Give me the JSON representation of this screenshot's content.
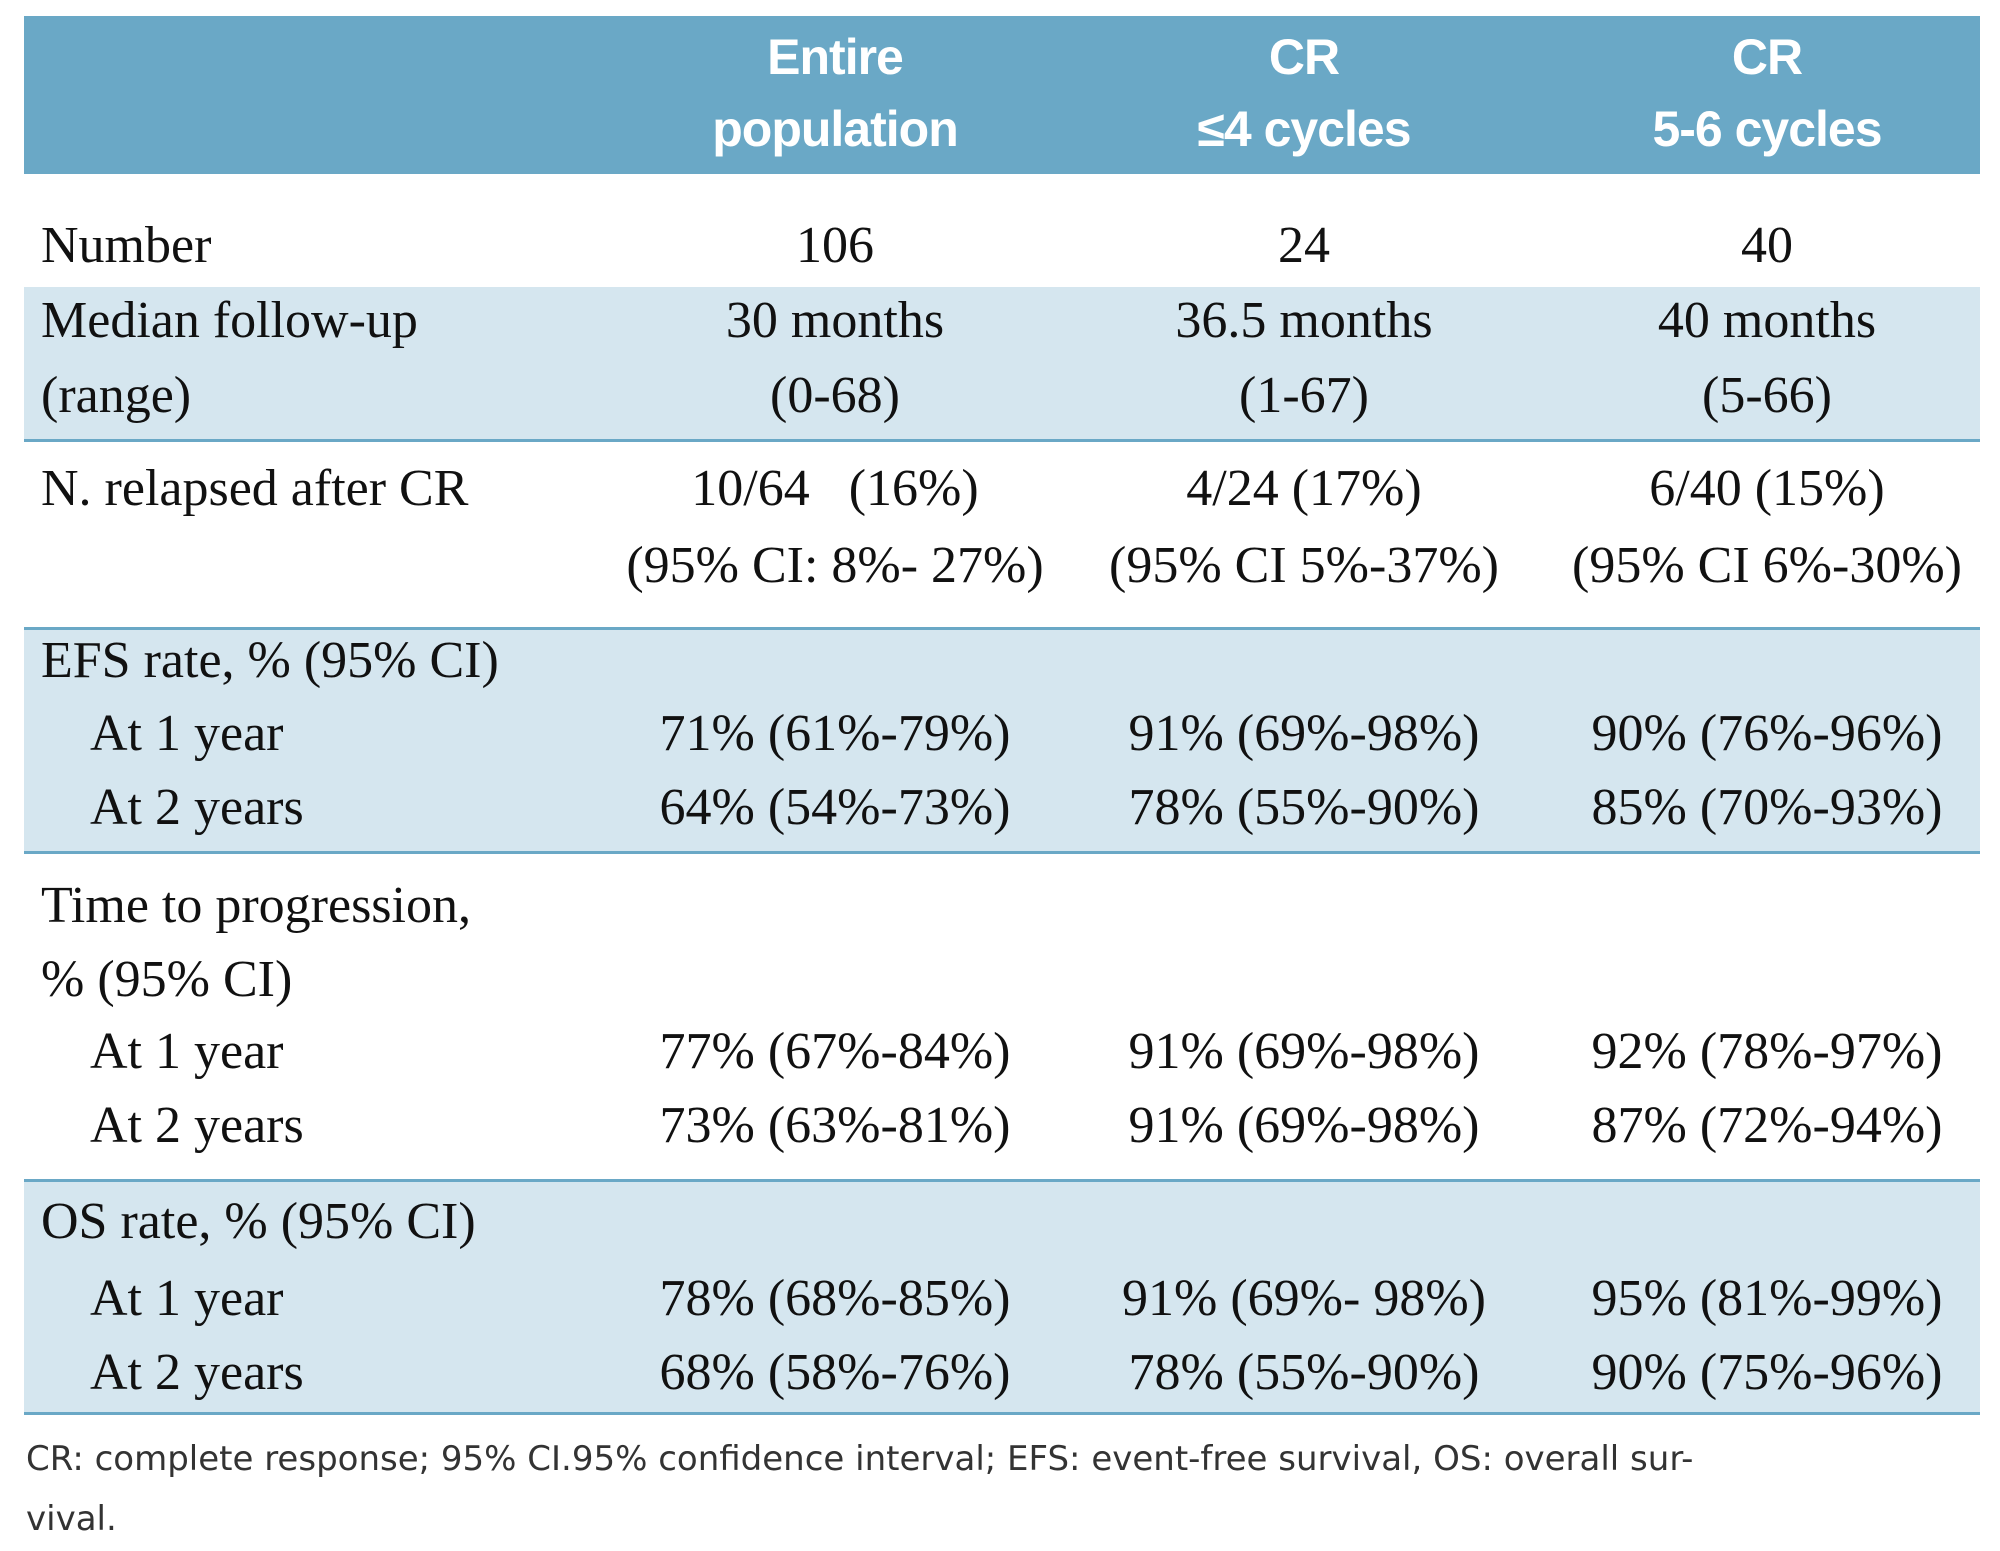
{
  "header": {
    "columns": [
      [
        "Entire",
        "population"
      ],
      [
        "CR",
        "≤4 cycles"
      ],
      [
        "CR",
        "5-6 cycles"
      ]
    ]
  },
  "sections": [
    {
      "lines": [
        {
          "label": "Number",
          "cells": [
            "106",
            "24",
            "40"
          ]
        }
      ]
    },
    {
      "lines": [
        {
          "label": "Median follow-up",
          "cells": [
            "30 months",
            "36.5 months",
            "40 months"
          ]
        },
        {
          "label": "(range)",
          "cells": [
            "(0-68)",
            "(1-67)",
            "(5-66)"
          ]
        }
      ]
    },
    {
      "lines": [
        {
          "label": "N. relapsed after CR",
          "cells": [
            "10/64   (16%)",
            "4/24 (17%)",
            "6/40 (15%)"
          ]
        },
        {
          "cells": [
            "(95% CI: 8%- 27%)",
            "(95% CI 5%-37%)",
            "(95% CI 6%-30%)"
          ]
        }
      ]
    },
    {
      "lines": [
        {
          "label": "EFS rate, % (95% CI)"
        },
        {
          "label": "At 1 year",
          "cells": [
            "71% (61%-79%)",
            "91% (69%-98%)",
            "90% (76%-96%)"
          ]
        },
        {
          "label": "At 2 years",
          "cells": [
            "64% (54%-73%)",
            "78% (55%-90%)",
            "85% (70%-93%)"
          ]
        }
      ]
    },
    {
      "lines": [
        {
          "label": "Time to progression,"
        },
        {
          "label": "% (95% CI)"
        },
        {
          "label": "At 1 year",
          "cells": [
            "77% (67%-84%)",
            "91% (69%-98%)",
            "92% (78%-97%)"
          ]
        },
        {
          "label": "At 2 years",
          "cells": [
            "73% (63%-81%)",
            "91% (69%-98%)",
            "87% (72%-94%)"
          ]
        }
      ]
    },
    {
      "lines": [
        {
          "label": "OS rate, % (95% CI)"
        },
        {
          "label": "At 1 year",
          "cells": [
            "78% (68%-85%)",
            "91% (69%- 98%)",
            "95% (81%-99%)"
          ]
        },
        {
          "label": "At 2 years",
          "cells": [
            "68% (58%-76%)",
            "78% (55%-90%)",
            "90% (75%-96%)"
          ]
        }
      ]
    }
  ],
  "footnote": [
    "CR: complete response; 95% CI.95% confidence interval; EFS: event-free survival, OS: overall sur-",
    "vival."
  ]
}
